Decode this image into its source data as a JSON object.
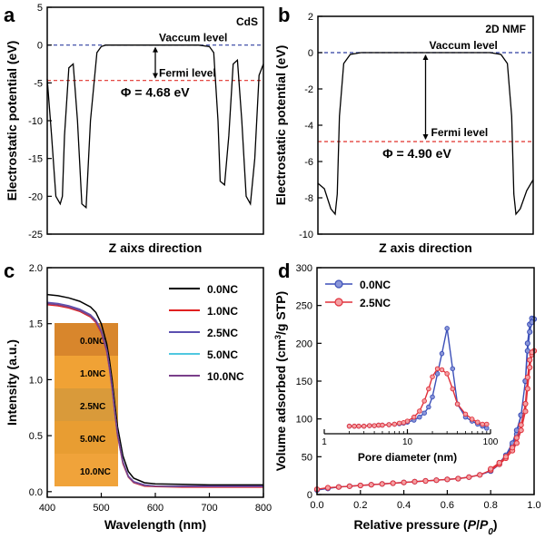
{
  "chart_data": [
    {
      "panel": "a",
      "type": "line",
      "label": "CdS",
      "xlabel": "Z aixs direction",
      "ylabel": "Electrostatic potential (eV)",
      "ylim": [
        -25,
        5
      ],
      "yticks": [
        5,
        0,
        -5,
        -10,
        -15,
        -20,
        -25
      ],
      "xlim": [
        0,
        1
      ],
      "series": [
        {
          "x": [
            0,
            0.02,
            0.04,
            0.06,
            0.07,
            0.08,
            0.1,
            0.12,
            0.14,
            0.16,
            0.18,
            0.2,
            0.23,
            0.25,
            0.27,
            0.3,
            0.4,
            0.5,
            0.6,
            0.7,
            0.75,
            0.77,
            0.79,
            0.8,
            0.82,
            0.84,
            0.86,
            0.88,
            0.9,
            0.92,
            0.94,
            0.96,
            0.98,
            1.0
          ],
          "y": [
            -4.5,
            -12,
            -20,
            -21,
            -20,
            -12,
            -3,
            -2.5,
            -10,
            -21,
            -21.5,
            -10,
            -1,
            -0.2,
            0,
            0,
            0,
            0,
            0,
            0,
            -0.2,
            -1,
            -10,
            -18,
            -18.5,
            -12,
            -2.5,
            -2,
            -10,
            -20,
            -21,
            -15,
            -4,
            -2.5
          ]
        }
      ],
      "hlines": [
        {
          "value": 0,
          "color": "#2e3ea0",
          "label": "Vaccum level"
        },
        {
          "value": -4.68,
          "color": "#e0302a",
          "label": "Fermi level"
        }
      ],
      "annotation": "Φ = 4.68 eV"
    },
    {
      "panel": "b",
      "type": "line",
      "label": "2D NMF",
      "xlabel": "Z axis direction",
      "ylabel": "Electrostatic potential (eV)",
      "ylim": [
        -10,
        2
      ],
      "yticks": [
        2,
        0,
        -2,
        -4,
        -6,
        -8,
        -10
      ],
      "xlim": [
        0,
        1
      ],
      "series": [
        {
          "x": [
            0,
            0.03,
            0.06,
            0.08,
            0.09,
            0.1,
            0.12,
            0.15,
            0.2,
            0.3,
            0.5,
            0.7,
            0.8,
            0.85,
            0.88,
            0.9,
            0.91,
            0.92,
            0.94,
            0.97,
            1.0
          ],
          "y": [
            -7.2,
            -7.5,
            -8.6,
            -8.9,
            -7.8,
            -3.5,
            -0.6,
            -0.1,
            0,
            0,
            0,
            0,
            0,
            -0.1,
            -0.6,
            -3.5,
            -7.8,
            -8.9,
            -8.6,
            -7.6,
            -7.0
          ]
        }
      ],
      "hlines": [
        {
          "value": 0,
          "color": "#2e3ea0",
          "label": "Vaccum level"
        },
        {
          "value": -4.9,
          "color": "#e0302a",
          "label": "Fermi level"
        }
      ],
      "annotation": "Φ = 4.90 eV"
    },
    {
      "panel": "c",
      "type": "line",
      "xlabel": "Wavelength (nm)",
      "ylabel": "Intensity (a.u.)",
      "xlim": [
        400,
        800
      ],
      "ylim": [
        -0.05,
        2.0
      ],
      "xticks": [
        400,
        500,
        600,
        700,
        800
      ],
      "yticks": [
        0.0,
        0.5,
        1.0,
        1.5,
        2.0
      ],
      "x": [
        400,
        420,
        440,
        460,
        480,
        490,
        500,
        510,
        515,
        520,
        525,
        530,
        540,
        550,
        560,
        580,
        600,
        650,
        700,
        750,
        800
      ],
      "series": [
        {
          "name": "0.0NC",
          "color": "#000000",
          "values": [
            1.76,
            1.75,
            1.73,
            1.7,
            1.65,
            1.6,
            1.5,
            1.32,
            1.18,
            1.0,
            0.78,
            0.58,
            0.32,
            0.18,
            0.12,
            0.08,
            0.07,
            0.065,
            0.06,
            0.06,
            0.06
          ]
        },
        {
          "name": "1.0NC",
          "color": "#e02020",
          "values": [
            1.67,
            1.66,
            1.64,
            1.61,
            1.56,
            1.51,
            1.42,
            1.25,
            1.1,
            0.92,
            0.7,
            0.5,
            0.25,
            0.13,
            0.08,
            0.05,
            0.045,
            0.04,
            0.04,
            0.04,
            0.04
          ]
        },
        {
          "name": "2.5NC",
          "color": "#5b4fb0",
          "values": [
            1.69,
            1.68,
            1.66,
            1.63,
            1.58,
            1.53,
            1.44,
            1.27,
            1.12,
            0.94,
            0.72,
            0.52,
            0.27,
            0.14,
            0.09,
            0.06,
            0.05,
            0.05,
            0.05,
            0.05,
            0.05
          ]
        },
        {
          "name": "5.0NC",
          "color": "#4fc8e0",
          "values": [
            1.68,
            1.67,
            1.65,
            1.62,
            1.57,
            1.52,
            1.43,
            1.26,
            1.11,
            0.93,
            0.71,
            0.51,
            0.26,
            0.135,
            0.085,
            0.055,
            0.05,
            0.045,
            0.045,
            0.045,
            0.045
          ]
        },
        {
          "name": "10.0NC",
          "color": "#7a3e8a",
          "values": [
            1.68,
            1.67,
            1.65,
            1.62,
            1.57,
            1.52,
            1.43,
            1.26,
            1.11,
            0.93,
            0.71,
            0.51,
            0.26,
            0.135,
            0.085,
            0.055,
            0.05,
            0.045,
            0.045,
            0.045,
            0.045
          ]
        }
      ],
      "inset_labels": [
        "0.0NC",
        "1.0NC",
        "2.5NC",
        "5.0NC",
        "10.0NC"
      ],
      "inset_colors": [
        "#d8862c",
        "#f0a235",
        "#d99a3a",
        "#e89d32",
        "#f0a33a"
      ],
      "legend": "top-right"
    },
    {
      "panel": "d",
      "type": "line",
      "xlabel": "Relative pressure (P/P0)",
      "ylabel": "Volume adsorbed (cm3/g STP)",
      "xlim": [
        0.0,
        1.0
      ],
      "ylim": [
        0,
        300
      ],
      "xticks": [
        0.0,
        0.2,
        0.4,
        0.6,
        0.8,
        1.0
      ],
      "yticks": [
        0,
        50,
        100,
        150,
        200,
        250,
        300
      ],
      "series": [
        {
          "name": "0.0NC",
          "color": "#3b4fb8",
          "x": [
            0.0,
            0.05,
            0.1,
            0.15,
            0.2,
            0.25,
            0.3,
            0.35,
            0.4,
            0.45,
            0.5,
            0.55,
            0.6,
            0.65,
            0.7,
            0.75,
            0.8,
            0.84,
            0.87,
            0.9,
            0.92,
            0.94,
            0.96,
            0.97,
            0.98,
            0.99,
            1.0,
            0.99,
            0.98,
            0.97,
            0.96,
            0.94,
            0.92,
            0.9,
            0.87,
            0.84,
            0.8
          ],
          "y": [
            6,
            8,
            10,
            11,
            12,
            13,
            14,
            15,
            16,
            17,
            18,
            19,
            20,
            21,
            23,
            26,
            31,
            40,
            50,
            65,
            80,
            105,
            150,
            200,
            225,
            233,
            232,
            228,
            215,
            190,
            150,
            105,
            85,
            68,
            52,
            42,
            33
          ]
        },
        {
          "name": "2.5NC",
          "color": "#e0303a",
          "x": [
            0.0,
            0.05,
            0.1,
            0.15,
            0.2,
            0.25,
            0.3,
            0.35,
            0.4,
            0.45,
            0.5,
            0.55,
            0.6,
            0.65,
            0.7,
            0.75,
            0.8,
            0.84,
            0.87,
            0.9,
            0.92,
            0.94,
            0.96,
            0.97,
            0.98,
            0.99,
            1.0,
            0.99,
            0.98,
            0.97,
            0.96,
            0.94,
            0.92,
            0.9,
            0.87,
            0.84,
            0.8
          ],
          "y": [
            7,
            9,
            10,
            11,
            12,
            13,
            14,
            15,
            16,
            17,
            18,
            19,
            20,
            21,
            23,
            26,
            32,
            40,
            48,
            58,
            68,
            85,
            110,
            140,
            168,
            185,
            190,
            188,
            178,
            155,
            120,
            92,
            75,
            62,
            50,
            42,
            34
          ]
        }
      ],
      "legend": "top-left",
      "inset": {
        "xlabel": "Pore diameter (nm)",
        "xscale": "log",
        "xlim": [
          1,
          100
        ],
        "xticks": [
          1,
          10,
          100
        ],
        "series": [
          {
            "name": "0.0NC",
            "color": "#3b4fb8",
            "x": [
              2,
              2.3,
              2.6,
              3,
              3.5,
              4,
              4.5,
              5,
              6,
              7,
              8,
              9,
              10,
              12,
              14,
              16,
              18,
              20,
              23,
              26,
              30,
              35,
              40,
              50,
              60,
              70,
              80,
              90
            ],
            "y": [
              0.03,
              0.03,
              0.03,
              0.03,
              0.035,
              0.035,
              0.04,
              0.04,
              0.045,
              0.05,
              0.055,
              0.06,
              0.07,
              0.09,
              0.12,
              0.16,
              0.22,
              0.32,
              0.55,
              0.75,
              1.0,
              0.6,
              0.25,
              0.12,
              0.08,
              0.05,
              0.03,
              0.01
            ]
          },
          {
            "name": "2.5NC",
            "color": "#e0303a",
            "x": [
              2,
              2.3,
              2.6,
              3,
              3.5,
              4,
              4.5,
              5,
              6,
              7,
              8,
              9,
              10,
              12,
              14,
              16,
              18,
              20,
              23,
              26,
              30,
              35,
              40,
              50,
              60,
              70,
              80,
              90
            ],
            "y": [
              0.03,
              0.03,
              0.03,
              0.03,
              0.035,
              0.035,
              0.04,
              0.04,
              0.045,
              0.05,
              0.06,
              0.065,
              0.08,
              0.12,
              0.18,
              0.28,
              0.4,
              0.52,
              0.6,
              0.59,
              0.55,
              0.4,
              0.25,
              0.15,
              0.1,
              0.07,
              0.05,
              0.05
            ]
          }
        ]
      }
    }
  ]
}
